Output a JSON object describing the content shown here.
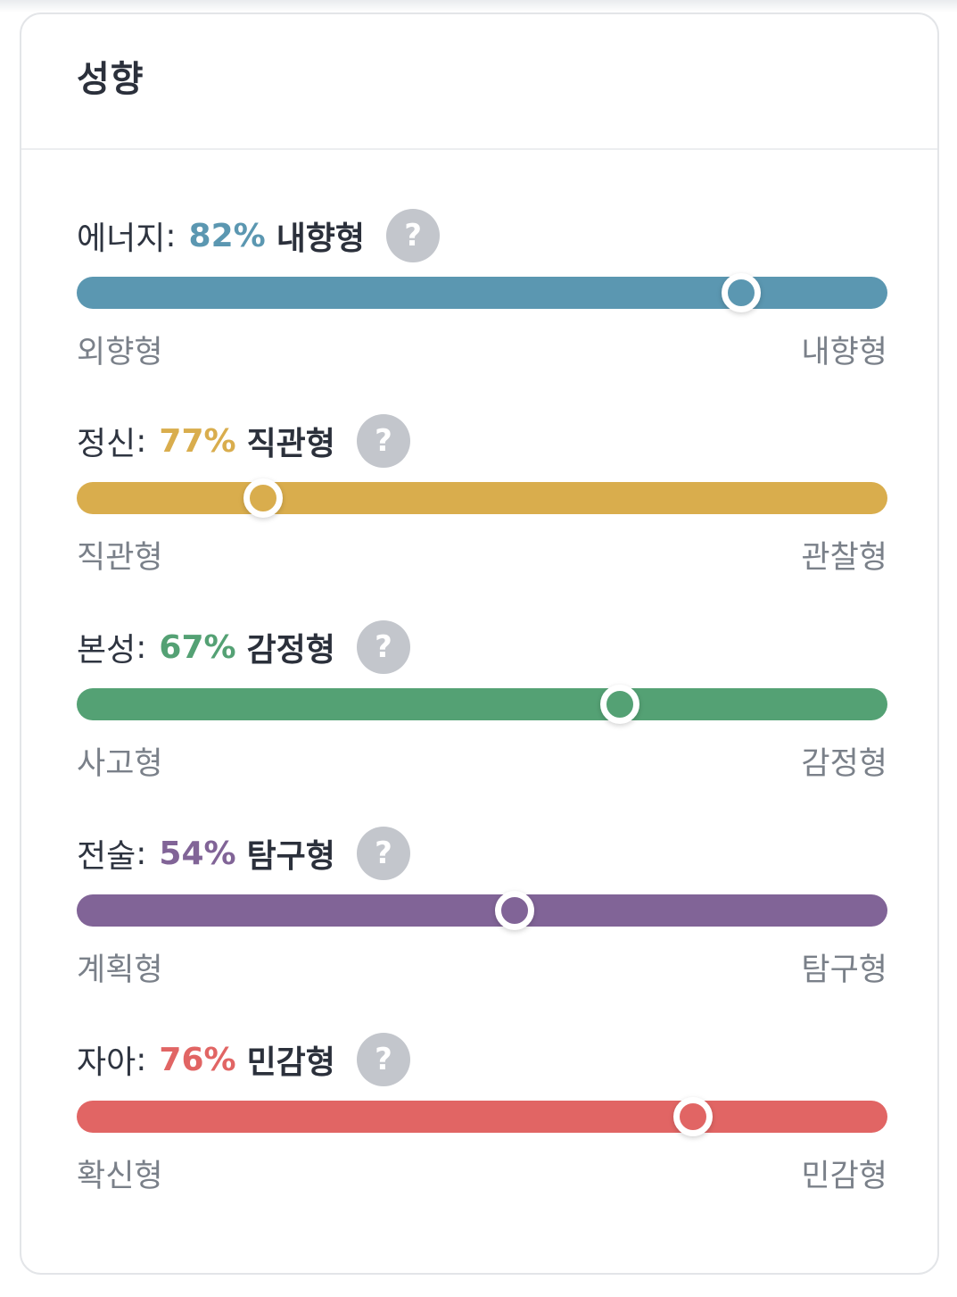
{
  "card": {
    "title": "성향"
  },
  "traits": [
    {
      "name": "에너지",
      "percent_text": "82%",
      "type": "내향형",
      "left": "외향형",
      "right": "내향형",
      "position": 0.82,
      "color": "#5b97b1"
    },
    {
      "name": "정신",
      "percent_text": "77%",
      "type": "직관형",
      "left": "직관형",
      "right": "관찰형",
      "position": 0.23,
      "color": "#d9ad4d"
    },
    {
      "name": "본성",
      "percent_text": "67%",
      "type": "감정형",
      "left": "사고형",
      "right": "감정형",
      "position": 0.67,
      "color": "#54a174"
    },
    {
      "name": "전술",
      "percent_text": "54%",
      "type": "탐구형",
      "left": "계획형",
      "right": "탐구형",
      "position": 0.54,
      "color": "#816497"
    },
    {
      "name": "자아",
      "percent_text": "76%",
      "type": "민감형",
      "left": "확신형",
      "right": "민감형",
      "position": 0.76,
      "color": "#e16564"
    }
  ],
  "help_glyph": "?",
  "icons": {
    "help": "question-circle-icon"
  }
}
